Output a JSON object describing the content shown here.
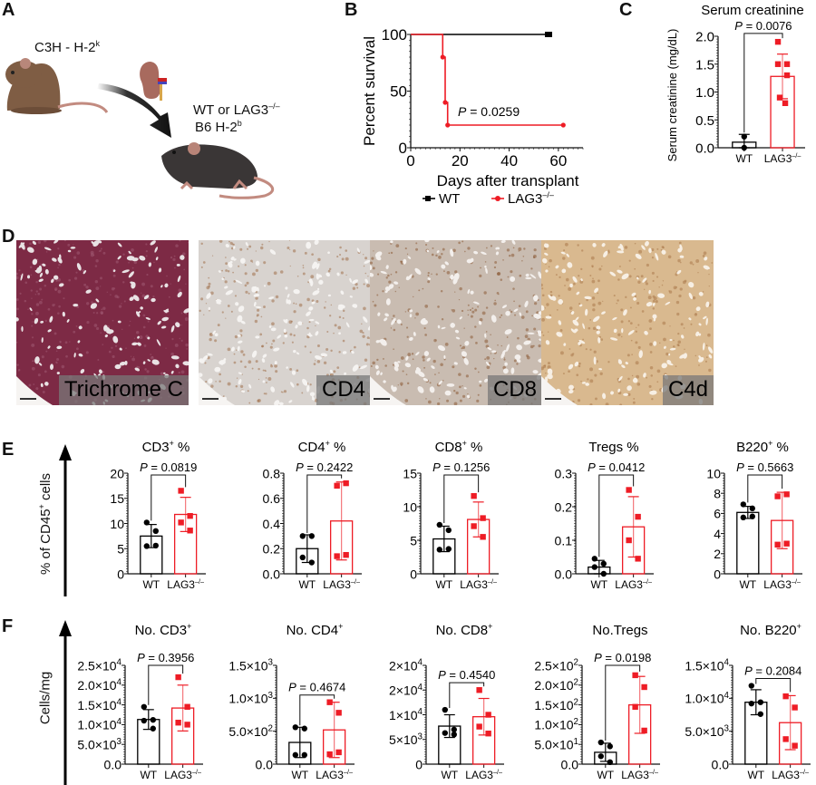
{
  "figure": {
    "panels": {
      "A": {
        "letter": "A",
        "donor_label": "C3H - H-2",
        "donor_sup": "k",
        "recipient_line1": "WT or LAG3",
        "recipient_line1_sup": "–/–",
        "recipient_line2": "B6 H-2",
        "recipient_line2_sup": "b",
        "icons": [
          "donor-mouse-icon",
          "kidney-icon",
          "arrow-icon",
          "recipient-mouse-icon"
        ]
      },
      "B": {
        "letter": "B"
      },
      "C": {
        "letter": "C"
      },
      "D": {
        "letter": "D",
        "images": [
          {
            "label": "Trichrome C",
            "stain": "trichrome",
            "colors": [
              "#7d2a45",
              "#a15a72",
              "#e9e2e4"
            ]
          },
          {
            "label": "CD4",
            "stain": "cd4",
            "colors": [
              "#d8d3cf",
              "#a0704a",
              "#f5f3f1"
            ]
          },
          {
            "label": "CD8",
            "stain": "cd8",
            "colors": [
              "#c9bcb1",
              "#8a5a35",
              "#f3efec"
            ]
          },
          {
            "label": "C4d",
            "stain": "c4d",
            "colors": [
              "#d9b98f",
              "#a9784a",
              "#f7efe4"
            ]
          }
        ]
      },
      "E": {
        "letter": "E",
        "group_axis_label": "% of CD45",
        "group_axis_sup": "+",
        "group_axis_suffix": " cells"
      },
      "F": {
        "letter": "F",
        "group_axis_label": "Cells/mg"
      }
    },
    "colors": {
      "wt": "#000000",
      "lag3": "#ee1c25",
      "axis": "#111111"
    }
  },
  "chart_data": [
    {
      "id": "B",
      "type": "line",
      "subtype": "kaplan-meier",
      "title": "",
      "xlabel": "Days after transplant",
      "ylabel": "Percent survival",
      "xlim": [
        0,
        70
      ],
      "ylim": [
        0,
        100
      ],
      "xticks": [
        0,
        20,
        40,
        60
      ],
      "yticks": [
        0,
        50,
        100
      ],
      "annotation": "P = 0.0259",
      "legend": [
        "WT",
        "LAG3–/–"
      ],
      "series": [
        {
          "name": "WT",
          "color": "#000000",
          "steps": [
            [
              0,
              100
            ],
            [
              56,
              100
            ]
          ],
          "censor": [
            [
              56,
              100
            ]
          ]
        },
        {
          "name": "LAG3–/–",
          "color": "#ee1c25",
          "steps": [
            [
              0,
              100
            ],
            [
              13,
              100
            ],
            [
              13,
              80
            ],
            [
              14,
              80
            ],
            [
              14,
              40
            ],
            [
              15,
              40
            ],
            [
              15,
              20
            ],
            [
              62,
              20
            ]
          ],
          "censor": [
            [
              13,
              80
            ],
            [
              14,
              40
            ],
            [
              15,
              20
            ],
            [
              62,
              20
            ]
          ]
        }
      ]
    },
    {
      "id": "C",
      "type": "bar",
      "title": "Serum creatinine",
      "ylabel": "Serum creatinine (mg/dL)",
      "categories": [
        "WT",
        "LAG3–/–"
      ],
      "ylim": [
        0,
        2.0
      ],
      "yticks": [
        "0.0",
        "0.5",
        "1.0",
        "1.5",
        "2.0"
      ],
      "ytick_values": [
        0,
        0.5,
        1.0,
        1.5,
        2.0
      ],
      "annotation": "P = 0.0076",
      "series": [
        {
          "name": "WT",
          "mean": 0.1,
          "sd": 0.14,
          "points": [
            0.0,
            0.2
          ]
        },
        {
          "name": "LAG3–/–",
          "mean": 1.28,
          "sd": 0.4,
          "points": [
            1.9,
            1.5,
            1.5,
            1.3,
            0.9,
            0.8
          ]
        }
      ]
    },
    {
      "id": "E1",
      "type": "bar",
      "title": "CD3",
      "title_sup": "+",
      "title_suffix": " %",
      "categories": [
        "WT",
        "LAG3–/–"
      ],
      "ylim": [
        0,
        20
      ],
      "yticks": [
        "0",
        "5",
        "10",
        "15",
        "20"
      ],
      "ytick_values": [
        0,
        5,
        10,
        15,
        20
      ],
      "annotation": "P = 0.0819",
      "series": [
        {
          "name": "WT",
          "mean": 7.5,
          "sd": 2.3,
          "points": [
            10.2,
            8.5,
            5.5,
            5.6
          ]
        },
        {
          "name": "LAG3–/–",
          "mean": 11.8,
          "sd": 3.4,
          "points": [
            16.5,
            11.5,
            10.2,
            8.6
          ]
        }
      ]
    },
    {
      "id": "E2",
      "type": "bar",
      "title": "CD4",
      "title_sup": "+",
      "title_suffix": " %",
      "categories": [
        "WT",
        "LAG3–/–"
      ],
      "ylim": [
        0,
        0.8
      ],
      "yticks": [
        "0.0",
        "0.2",
        "0.4",
        "0.6",
        "0.8"
      ],
      "ytick_values": [
        0,
        0.2,
        0.4,
        0.6,
        0.8
      ],
      "annotation": "P = 0.2422",
      "series": [
        {
          "name": "WT",
          "mean": 0.2,
          "sd": 0.11,
          "points": [
            0.3,
            0.3,
            0.13,
            0.09
          ]
        },
        {
          "name": "LAG3–/–",
          "mean": 0.42,
          "sd": 0.31,
          "points": [
            0.7,
            0.72,
            0.14,
            0.15
          ]
        }
      ]
    },
    {
      "id": "E3",
      "type": "bar",
      "title": "CD8",
      "title_sup": "+",
      "title_suffix": " %",
      "categories": [
        "WT",
        "LAG3–/–"
      ],
      "ylim": [
        0,
        15
      ],
      "yticks": [
        "0",
        "5",
        "10",
        "15"
      ],
      "ytick_values": [
        0,
        5,
        10,
        15
      ],
      "annotation": "P = 0.1256",
      "series": [
        {
          "name": "WT",
          "mean": 5.2,
          "sd": 1.9,
          "points": [
            7.3,
            6.5,
            3.6,
            3.7
          ]
        },
        {
          "name": "LAG3–/–",
          "mean": 8.1,
          "sd": 2.6,
          "points": [
            11.6,
            8.3,
            7.1,
            5.5
          ]
        }
      ]
    },
    {
      "id": "E4",
      "type": "bar",
      "title": "Tregs %",
      "title_sup": "",
      "title_suffix": "",
      "categories": [
        "WT",
        "LAG3–/–"
      ],
      "ylim": [
        0,
        0.3
      ],
      "yticks": [
        "0.0",
        "0.1",
        "0.2",
        "0.3"
      ],
      "ytick_values": [
        0,
        0.1,
        0.2,
        0.3
      ],
      "annotation": "P = 0.0412",
      "series": [
        {
          "name": "WT",
          "mean": 0.02,
          "sd": 0.02,
          "points": [
            0.045,
            0.03,
            0.02,
            0.0
          ]
        },
        {
          "name": "LAG3–/–",
          "mean": 0.14,
          "sd": 0.09,
          "points": [
            0.25,
            0.17,
            0.1,
            0.045
          ]
        }
      ]
    },
    {
      "id": "E5",
      "type": "bar",
      "title": "B220",
      "title_sup": "+",
      "title_suffix": " %",
      "categories": [
        "WT",
        "LAG3–/–"
      ],
      "ylim": [
        0,
        10
      ],
      "yticks": [
        "0",
        "2",
        "4",
        "6",
        "8",
        "10"
      ],
      "ytick_values": [
        0,
        2,
        4,
        6,
        8,
        10
      ],
      "annotation": "P = 0.5663",
      "series": [
        {
          "name": "WT",
          "mean": 6.1,
          "sd": 0.6,
          "points": [
            6.9,
            6.5,
            5.6,
            5.7
          ]
        },
        {
          "name": "LAG3–/–",
          "mean": 5.3,
          "sd": 2.8,
          "points": [
            7.7,
            7.9,
            2.9,
            3.0
          ]
        }
      ]
    },
    {
      "id": "F1",
      "type": "bar",
      "title": "No. CD3",
      "title_sup": "+",
      "title_suffix": "",
      "categories": [
        "WT",
        "LAG3–/–"
      ],
      "ylim": [
        0,
        25000
      ],
      "yticks": [
        "0.0",
        "5.0×10^3",
        "1.0×10^4",
        "1.5×10^4",
        "2.0×10^4",
        "2.5×10^4"
      ],
      "ytick_values": [
        0,
        5000,
        10000,
        15000,
        20000,
        25000
      ],
      "annotation": "P = 0.3956",
      "annotation_y": 25000,
      "series": [
        {
          "name": "WT",
          "mean": 11300,
          "sd": 2500,
          "points": [
            14500,
            11200,
            11000,
            9000
          ]
        },
        {
          "name": "LAG3–/–",
          "mean": 14200,
          "sd": 5800,
          "points": [
            22000,
            14500,
            10500,
            10000
          ]
        }
      ]
    },
    {
      "id": "F2",
      "type": "bar",
      "title": "No. CD4",
      "title_sup": "+",
      "title_suffix": "",
      "categories": [
        "WT",
        "LAG3–/–"
      ],
      "ylim": [
        0,
        1500
      ],
      "yticks": [
        "0.0",
        "5.0×10^2",
        "1.0×10^3",
        "1.5×10^3"
      ],
      "ytick_values": [
        0,
        500,
        1000,
        1500
      ],
      "annotation": "P = 0.4674",
      "annotation_y": 1050,
      "series": [
        {
          "name": "WT",
          "mean": 330,
          "sd": 230,
          "points": [
            560,
            540,
            140,
            140
          ]
        },
        {
          "name": "LAG3–/–",
          "mean": 520,
          "sd": 420,
          "points": [
            940,
            780,
            150,
            180
          ]
        }
      ]
    },
    {
      "id": "F3",
      "type": "bar",
      "title": "No. CD8",
      "title_sup": "+",
      "title_suffix": "",
      "categories": [
        "WT",
        "LAG3–/–"
      ],
      "ylim": [
        0,
        20000
      ],
      "yticks": [
        "0",
        "5×10^3",
        "1×10^4",
        "2×10^4",
        "2×10^4"
      ],
      "ytick_values": [
        0,
        5000,
        10000,
        15000,
        20000
      ],
      "annotation": "P = 0.4540",
      "annotation_y": 16500,
      "series": [
        {
          "name": "WT",
          "mean": 7700,
          "sd": 2300,
          "points": [
            11000,
            7000,
            6300,
            6000
          ]
        },
        {
          "name": "LAG3–/–",
          "mean": 9600,
          "sd": 3700,
          "points": [
            15000,
            10000,
            7600,
            6200
          ]
        }
      ]
    },
    {
      "id": "F4",
      "type": "bar",
      "title": "No.Tregs",
      "title_sup": "",
      "title_suffix": "",
      "categories": [
        "WT",
        "LAG3–/–"
      ],
      "ylim": [
        0,
        250
      ],
      "yticks": [
        "0.0",
        "5.0×10^1",
        "1.0×10^2",
        "1.5×10^2",
        "2.0×10^2",
        "2.5×10^2"
      ],
      "ytick_values": [
        0,
        50,
        100,
        150,
        200,
        250
      ],
      "annotation": "P = 0.0198",
      "annotation_y": 250,
      "series": [
        {
          "name": "WT",
          "mean": 30,
          "sd": 23,
          "points": [
            55,
            45,
            20,
            5
          ]
        },
        {
          "name": "LAG3–/–",
          "mean": 150,
          "sd": 72,
          "points": [
            225,
            195,
            145,
            85
          ]
        }
      ]
    },
    {
      "id": "F5",
      "type": "bar",
      "title": "No. B220",
      "title_sup": "+",
      "title_suffix": "",
      "categories": [
        "WT",
        "LAG3–/–"
      ],
      "ylim": [
        0,
        15000
      ],
      "yticks": [
        "0.0",
        "5.0×10^3",
        "1.0×10^4",
        "1.5×10^4"
      ],
      "ytick_values": [
        0,
        5000,
        10000,
        15000
      ],
      "annotation": "P = 0.2084",
      "annotation_y": 13000,
      "series": [
        {
          "name": "WT",
          "mean": 9400,
          "sd": 1900,
          "points": [
            11900,
            9400,
            9200,
            7600
          ]
        },
        {
          "name": "LAG3–/–",
          "mean": 6300,
          "sd": 4100,
          "points": [
            10300,
            8600,
            3800,
            2800
          ]
        }
      ]
    }
  ]
}
